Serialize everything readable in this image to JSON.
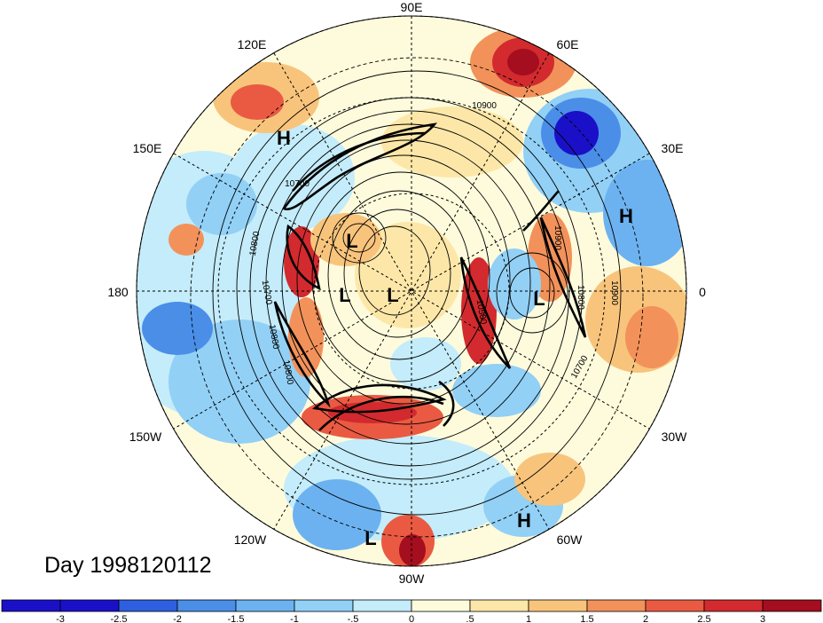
{
  "date_label": "Day 1998120112",
  "longitude_labels": [
    "90E",
    "120E",
    "60E",
    "150E",
    "30E",
    "180",
    "0",
    "150W",
    "30W",
    "120W",
    "60W",
    "90W"
  ],
  "pressure_centers": [
    "H",
    "L",
    "L",
    "L",
    "L",
    "H",
    "H",
    "L"
  ],
  "contour_labels": [
    "10900",
    "10800",
    "10700",
    "10500",
    "10900",
    "10800",
    "10700",
    "10800",
    "10900",
    "10800",
    "10700"
  ],
  "colorbar": {
    "ticks": [
      "-3",
      "-2.5",
      "-2",
      "-1.5",
      "-1",
      "-.5",
      "0",
      ".5",
      "1",
      "1.5",
      "2",
      "2.5",
      "3"
    ],
    "colors": [
      "#1a10c8",
      "#2e5fe0",
      "#4a8ee8",
      "#6cb2f0",
      "#92d0f6",
      "#c4ecfa",
      "#fdfbdc",
      "#fde7a8",
      "#f8c47c",
      "#f2925a",
      "#ea5a42",
      "#d22a2e",
      "#a40e1e"
    ]
  }
}
